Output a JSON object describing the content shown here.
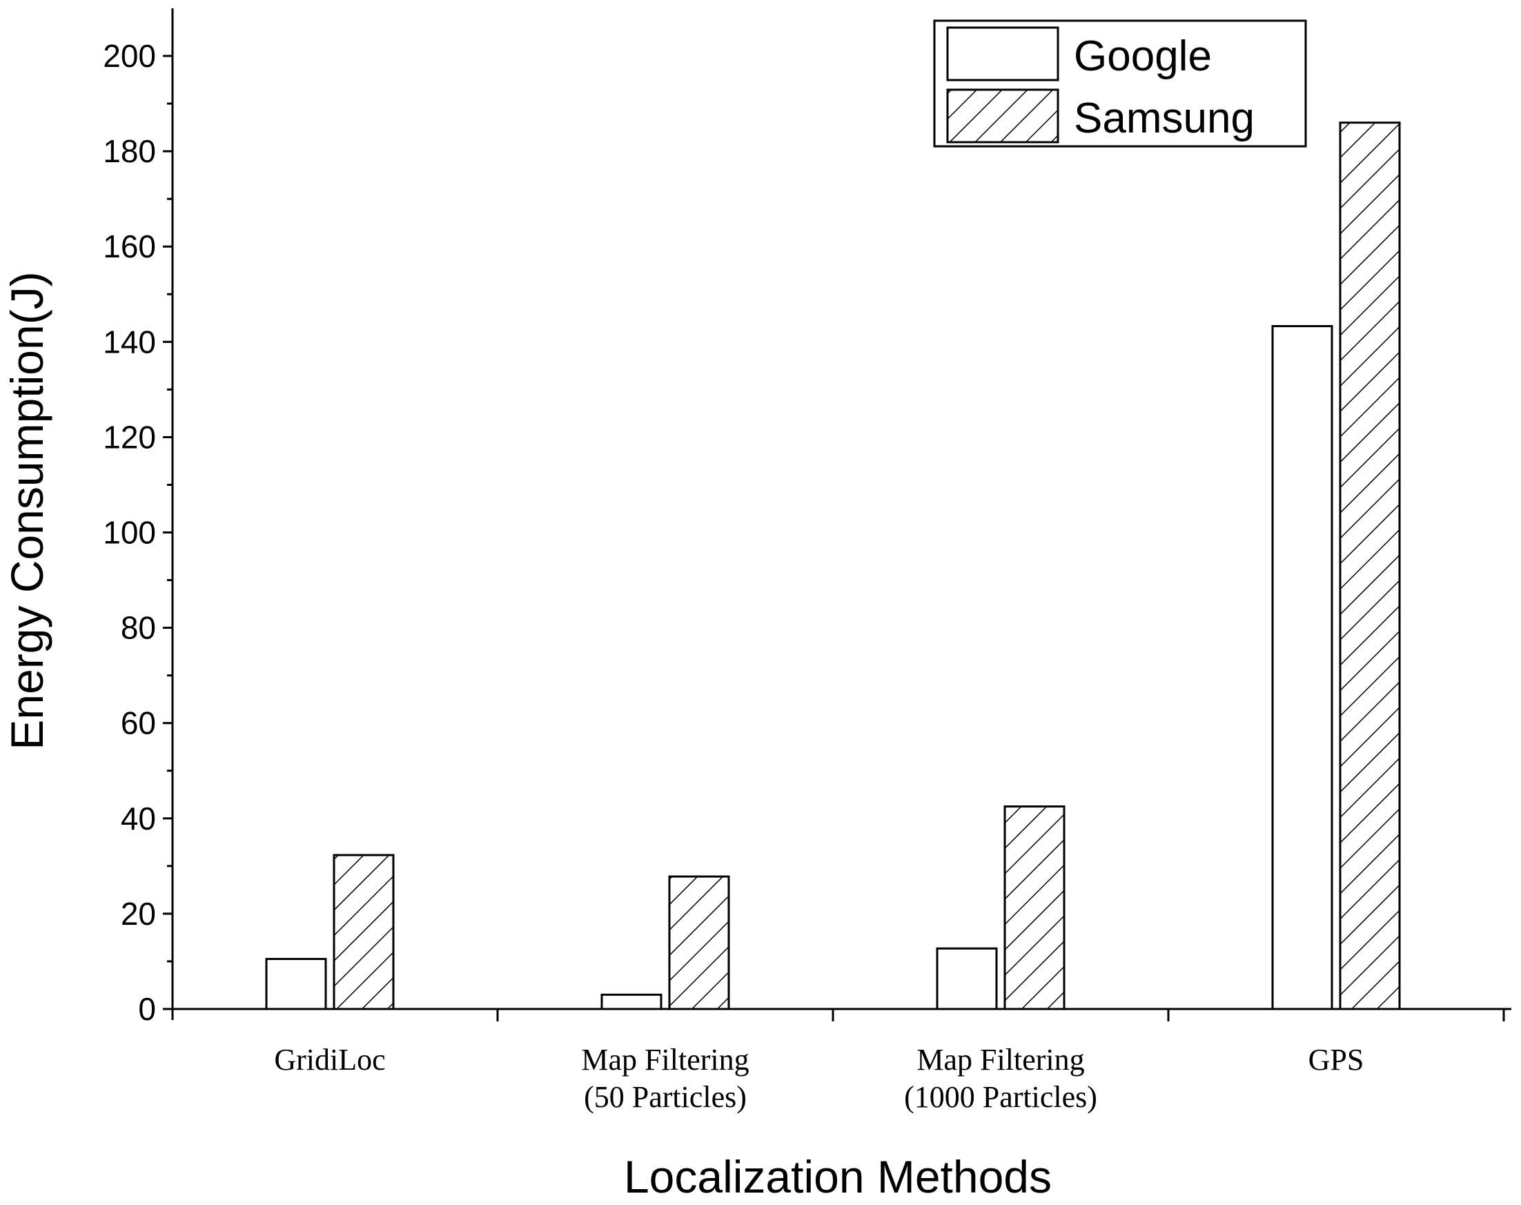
{
  "chart_data": {
    "type": "bar",
    "categories": [
      [
        "GridiLoc"
      ],
      [
        "Map Filtering",
        "(50 Particles)"
      ],
      [
        "Map Filtering",
        "(1000 Particles)"
      ],
      [
        "GPS"
      ]
    ],
    "series": [
      {
        "name": "Google",
        "values": [
          10.5,
          3.0,
          12.7,
          143.3
        ],
        "fill": "#ffffff",
        "pattern": "none"
      },
      {
        "name": "Samsung",
        "values": [
          32.3,
          27.8,
          42.5,
          186.0
        ],
        "fill": "#ffffff",
        "pattern": "diagonal-hatch"
      }
    ],
    "xlabel": "Localization Methods",
    "ylabel": "Energy Consumption(J)",
    "ylim": [
      0,
      210
    ],
    "yticks": [
      0,
      20,
      40,
      60,
      80,
      100,
      120,
      140,
      160,
      180,
      200
    ],
    "grid": false,
    "legend_position": "top-right",
    "colors": {
      "stroke": "#000000",
      "background": "#ffffff"
    }
  }
}
